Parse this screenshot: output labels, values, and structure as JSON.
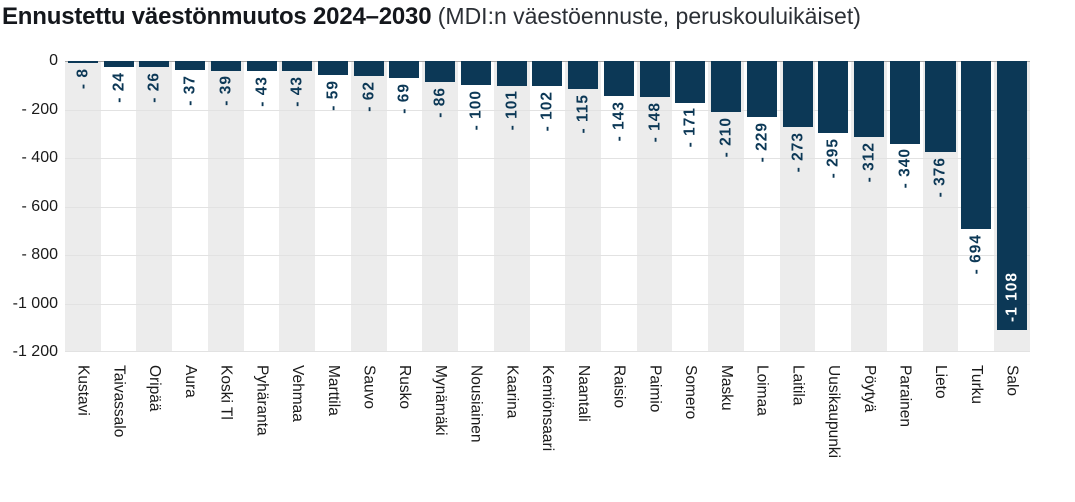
{
  "title": {
    "main": "Ennustettu väestönmuutos 2024–2030",
    "sub": " (MDI:n väestöennuste, peruskouluikäiset)"
  },
  "chart_data": {
    "type": "bar",
    "orientation": "vertical-negative",
    "title": "Ennustettu väestönmuutos 2024–2030",
    "subtitle": "(MDI:n väestöennuste, peruskouluikäiset)",
    "xlabel": "",
    "ylabel": "",
    "ylim": [
      -1200,
      0
    ],
    "grid": "horizontal",
    "categories": [
      "Kustavi",
      "Taivassalo",
      "Oripää",
      "Aura",
      "Koski Tl",
      "Pyhäranta",
      "Vehmaa",
      "Marttila",
      "Sauvo",
      "Rusko",
      "Mynämäki",
      "Nousiainen",
      "Kaarina",
      "Kemiönsaari",
      "Naantali",
      "Raisio",
      "Paimio",
      "Somero",
      "Masku",
      "Loimaa",
      "Laitila",
      "Uusikaupunki",
      "Pöytyä",
      "Parainen",
      "Lieto",
      "Turku",
      "Salo"
    ],
    "values": [
      -8,
      -24,
      -26,
      -37,
      -39,
      -43,
      -43,
      -59,
      -62,
      -69,
      -86,
      -100,
      -101,
      -102,
      -115,
      -143,
      -148,
      -171,
      -210,
      -229,
      -273,
      -295,
      -312,
      -340,
      -376,
      -694,
      -1108
    ],
    "value_labels": [
      "- 8",
      "- 24",
      "- 26",
      "- 37",
      "- 39",
      "- 43",
      "- 43",
      "- 59",
      "- 62",
      "- 69",
      "- 86",
      "- 100",
      "- 101",
      "- 102",
      "- 115",
      "- 143",
      "- 148",
      "- 171",
      "- 210",
      "- 229",
      "- 273",
      "- 295",
      "- 312",
      "- 340",
      "- 376",
      "- 694",
      "-1 108"
    ],
    "inside_value_label_indices": [
      26
    ],
    "yticks": {
      "values": [
        0,
        -200,
        -400,
        -600,
        -800,
        -1000,
        -1200
      ],
      "labels": [
        "0",
        "- 200",
        "- 400",
        "- 600",
        "- 800",
        "-1 000",
        "-1 200"
      ]
    },
    "column_bands": "alternating light gray starting at first column",
    "colors": {
      "bar": "#0c3856",
      "value_label_outside": "#0c3856",
      "value_label_inside": "#ffffff",
      "band": "#ececec",
      "gridline": "#e2e2e2",
      "zero_line": "#a6a6a6",
      "axis_text": "#1a1a1a"
    }
  }
}
